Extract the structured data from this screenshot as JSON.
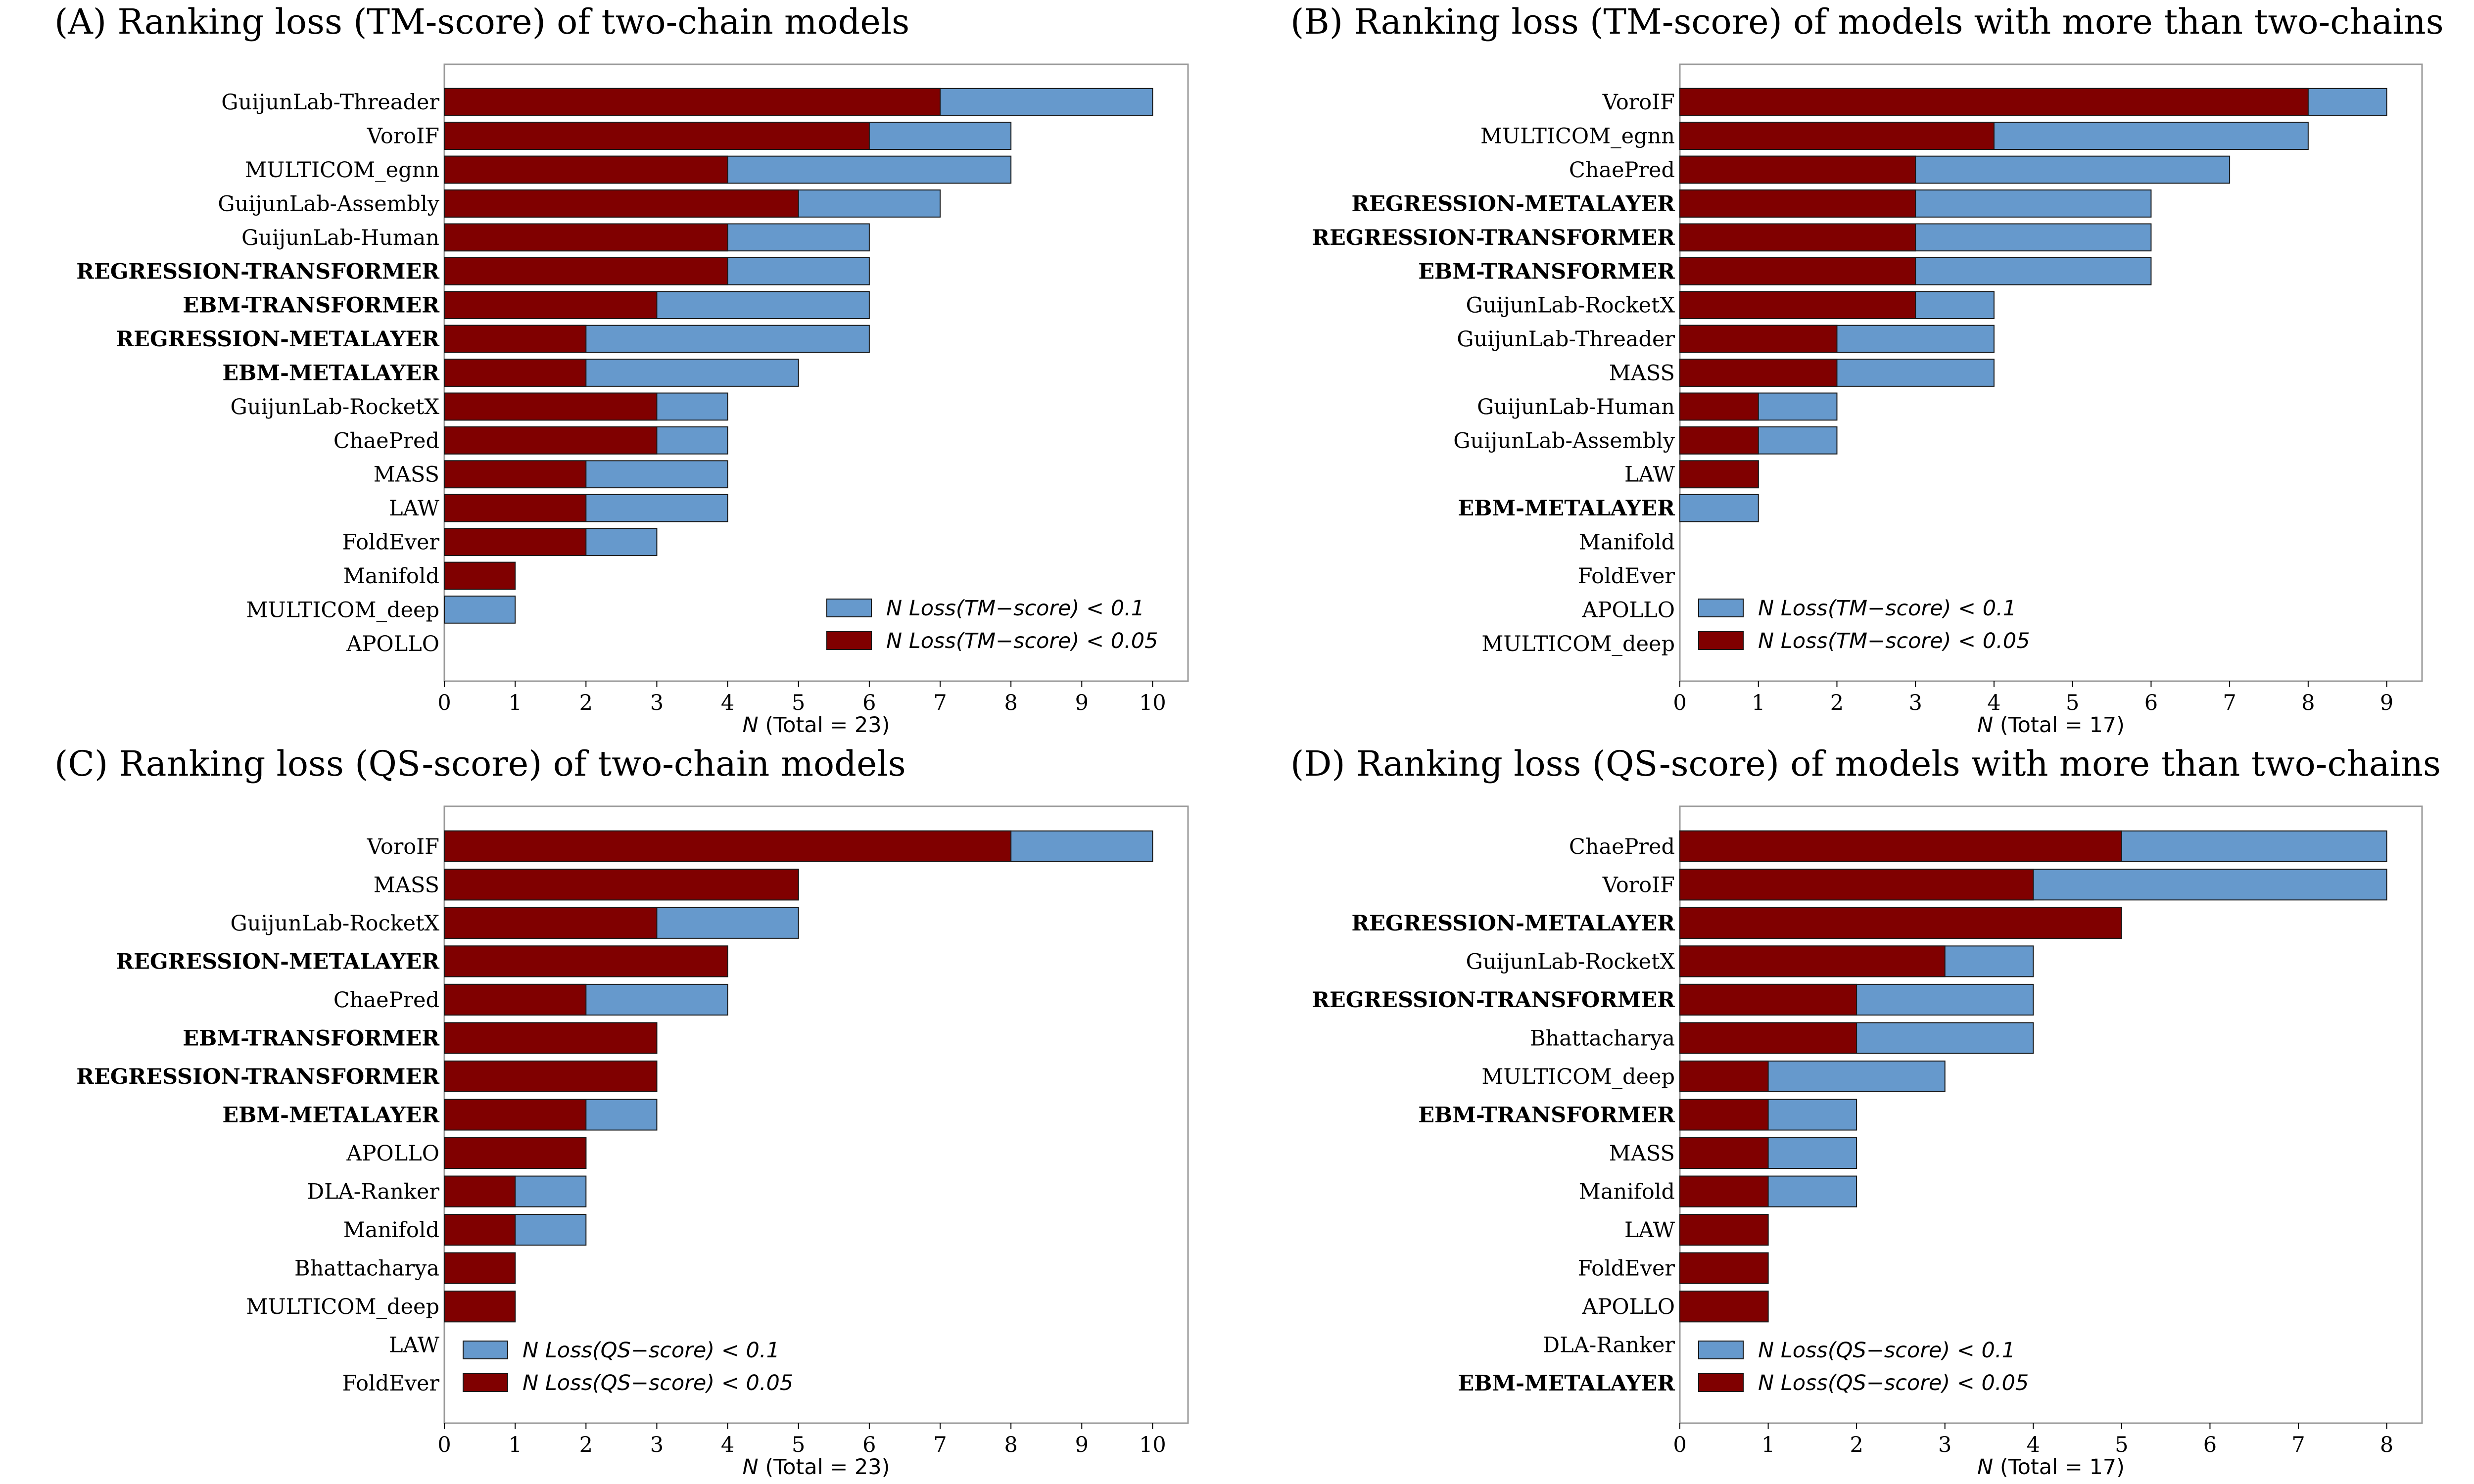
{
  "colors": {
    "blue": "#6699cc",
    "red": "#800000",
    "frame": "#999999"
  },
  "chart_data": [
    {
      "type": "bar",
      "panel": "A",
      "title": "(A) Ranking loss (TM-score) of two-chain models",
      "categories": [
        "GuijunLab-Threader",
        "VoroIF",
        "MULTICOM_egnn",
        "GuijunLab-Assembly",
        "GuijunLab-Human",
        "REGRESSION-TRANSFORMER",
        "EBM-TRANSFORMER",
        "REGRESSION-METALAYER",
        "EBM-METALAYER",
        "GuijunLab-RocketX",
        "ChaePred",
        "MASS",
        "LAW",
        "FoldEver",
        "Manifold",
        "MULTICOM_deep",
        "APOLLO"
      ],
      "bold_categories": [
        "REGRESSION-TRANSFORMER",
        "EBM-TRANSFORMER",
        "REGRESSION-METALAYER",
        "EBM-METALAYER"
      ],
      "series": [
        {
          "name": "N Loss(TM−score) < 0.1",
          "color": "#6699cc",
          "values": [
            10,
            8,
            8,
            7,
            6,
            6,
            6,
            6,
            5,
            4,
            4,
            4,
            4,
            3,
            0,
            1,
            0
          ]
        },
        {
          "name": "N Loss(TM−score) < 0.05",
          "color": "#800000",
          "values": [
            7,
            6,
            4,
            5,
            4,
            4,
            3,
            2,
            2,
            3,
            3,
            2,
            2,
            2,
            1,
            0,
            0
          ]
        }
      ],
      "xlim": [
        0,
        10.5
      ],
      "xticks": [
        "0",
        "1",
        "2",
        "3",
        "4",
        "5",
        "6",
        "7",
        "8",
        "9",
        "10"
      ],
      "xlabel_italic": "N",
      "xlabel_rest": " (Total = 23)",
      "legend": "lower right"
    },
    {
      "type": "bar",
      "panel": "B",
      "title": "(B) Ranking loss (TM-score) of models with more than two-chains",
      "categories": [
        "VoroIF",
        "MULTICOM_egnn",
        "ChaePred",
        "REGRESSION-METALAYER",
        "REGRESSION-TRANSFORMER",
        "EBM-TRANSFORMER",
        "GuijunLab-RocketX",
        "GuijunLab-Threader",
        "MASS",
        "GuijunLab-Human",
        "GuijunLab-Assembly",
        "LAW",
        "EBM-METALAYER",
        "Manifold",
        "FoldEver",
        "APOLLO",
        "MULTICOM_deep"
      ],
      "bold_categories": [
        "REGRESSION-METALAYER",
        "REGRESSION-TRANSFORMER",
        "EBM-TRANSFORMER",
        "EBM-METALAYER"
      ],
      "series": [
        {
          "name": "N Loss(TM−score) < 0.1",
          "color": "#6699cc",
          "values": [
            9,
            8,
            7,
            6,
            6,
            6,
            4,
            4,
            4,
            2,
            2,
            1,
            1,
            0,
            0,
            0,
            0
          ]
        },
        {
          "name": "N Loss(TM−score) < 0.05",
          "color": "#800000",
          "values": [
            8,
            4,
            3,
            3,
            3,
            3,
            3,
            2,
            2,
            1,
            1,
            1,
            0,
            0,
            0,
            0,
            0
          ]
        }
      ],
      "xlim": [
        0,
        9.45
      ],
      "xticks": [
        "0",
        "1",
        "2",
        "3",
        "4",
        "5",
        "6",
        "7",
        "8",
        "9"
      ],
      "xlabel_italic": "N",
      "xlabel_rest": " (Total = 17)",
      "legend": "lower left"
    },
    {
      "type": "bar",
      "panel": "C",
      "title": "(C) Ranking loss (QS-score) of two-chain models",
      "categories": [
        "VoroIF",
        "MASS",
        "GuijunLab-RocketX",
        "REGRESSION-METALAYER",
        "ChaePred",
        "EBM-TRANSFORMER",
        "REGRESSION-TRANSFORMER",
        "EBM-METALAYER",
        "APOLLO",
        "DLA-Ranker",
        "Manifold",
        "Bhattacharya",
        "MULTICOM_deep",
        "LAW",
        "FoldEver"
      ],
      "bold_categories": [
        "REGRESSION-METALAYER",
        "EBM-TRANSFORMER",
        "REGRESSION-TRANSFORMER",
        "EBM-METALAYER"
      ],
      "series": [
        {
          "name": "N Loss(QS−score) < 0.1",
          "color": "#6699cc",
          "values": [
            10,
            5,
            5,
            4,
            4,
            3,
            3,
            3,
            2,
            2,
            2,
            1,
            1,
            0,
            0
          ]
        },
        {
          "name": "N Loss(QS−score) < 0.05",
          "color": "#800000",
          "values": [
            8,
            5,
            3,
            4,
            2,
            3,
            3,
            2,
            2,
            1,
            1,
            1,
            1,
            0,
            0
          ]
        }
      ],
      "xlim": [
        0,
        10.5
      ],
      "xticks": [
        "0",
        "1",
        "2",
        "3",
        "4",
        "5",
        "6",
        "7",
        "8",
        "9",
        "10"
      ],
      "xlabel_italic": "N",
      "xlabel_rest": " (Total = 23)",
      "legend": "lower left"
    },
    {
      "type": "bar",
      "panel": "D",
      "title": "(D) Ranking loss (QS-score) of models with more than two-chains",
      "categories": [
        "ChaePred",
        "VoroIF",
        "REGRESSION-METALAYER",
        "GuijunLab-RocketX",
        "REGRESSION-TRANSFORMER",
        "Bhattacharya",
        "MULTICOM_deep",
        "EBM-TRANSFORMER",
        "MASS",
        "Manifold",
        "LAW",
        "FoldEver",
        "APOLLO",
        "DLA-Ranker",
        "EBM-METALAYER"
      ],
      "bold_categories": [
        "REGRESSION-METALAYER",
        "REGRESSION-TRANSFORMER",
        "EBM-TRANSFORMER",
        "EBM-METALAYER"
      ],
      "series": [
        {
          "name": "N Loss(QS−score) < 0.1",
          "color": "#6699cc",
          "values": [
            8,
            8,
            5,
            4,
            4,
            4,
            3,
            2,
            2,
            2,
            1,
            1,
            1,
            0,
            0
          ]
        },
        {
          "name": "N Loss(QS−score) < 0.05",
          "color": "#800000",
          "values": [
            5,
            4,
            5,
            3,
            2,
            2,
            1,
            1,
            1,
            1,
            1,
            1,
            1,
            0,
            0
          ]
        }
      ],
      "xlim": [
        0,
        8.4
      ],
      "xticks": [
        "0",
        "1",
        "2",
        "3",
        "4",
        "5",
        "6",
        "7",
        "8"
      ],
      "xlabel_italic": "N",
      "xlabel_rest": " (Total = 17)",
      "legend": "lower left"
    }
  ]
}
